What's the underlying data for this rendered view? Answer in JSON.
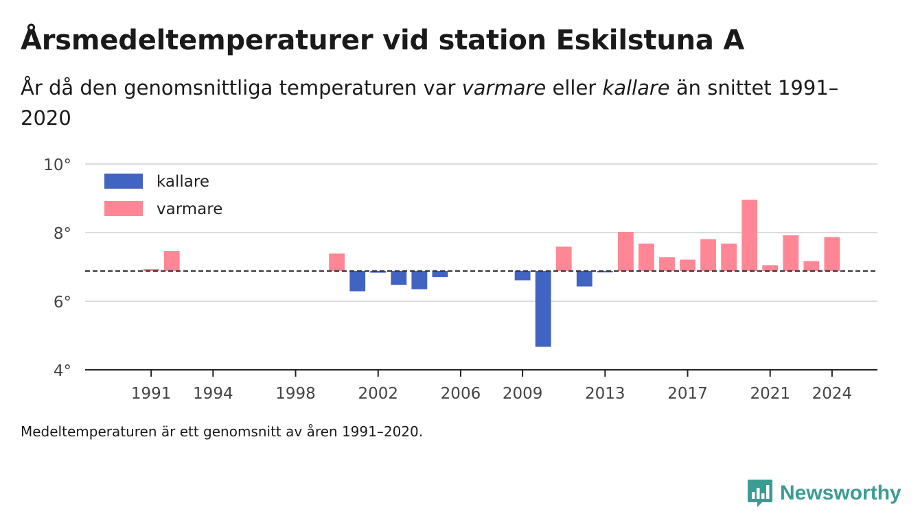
{
  "header": {
    "title": "Årsmedeltemperaturer vid station Eskilstuna A",
    "subtitle_parts": [
      "År då den genomsnittliga temperaturen var ",
      "varmare",
      " eller ",
      "kallare",
      " än snittet 1991–2020"
    ]
  },
  "footnote": "Medeltemperaturen är ett genomsnitt av åren 1991–2020.",
  "brand": {
    "name": "Newsworthy",
    "icon": "newsworthy-logo-icon",
    "color": "#3a9c92"
  },
  "colors": {
    "kallare": "#4163c1",
    "varmare": "#ff8795"
  },
  "chart_data": {
    "type": "bar",
    "ylim": [
      4,
      10
    ],
    "yticks": [
      4,
      6,
      8,
      10
    ],
    "ytick_labels": [
      "4°",
      "6°",
      "8°",
      "10°"
    ],
    "xlim": [
      1987.8,
      2026.2
    ],
    "xticks": [
      1991,
      1994,
      1998,
      2002,
      2006,
      2009,
      2013,
      2017,
      2021,
      2024
    ],
    "baseline": 6.88,
    "baseline_style": "dashed",
    "grid": true,
    "legend_position": "top-left",
    "legend": [
      {
        "label": "kallare",
        "color": "#4163c1"
      },
      {
        "label": "varmare",
        "color": "#ff8795"
      }
    ],
    "bars": [
      {
        "year": 1991,
        "value": 6.94
      },
      {
        "year": 1992,
        "value": 7.46
      },
      {
        "year": 2000,
        "value": 7.39
      },
      {
        "year": 2001,
        "value": 6.29
      },
      {
        "year": 2002,
        "value": 6.83
      },
      {
        "year": 2003,
        "value": 6.48
      },
      {
        "year": 2004,
        "value": 6.35
      },
      {
        "year": 2005,
        "value": 6.7
      },
      {
        "year": 2009,
        "value": 6.61
      },
      {
        "year": 2010,
        "value": 4.67
      },
      {
        "year": 2011,
        "value": 7.59
      },
      {
        "year": 2012,
        "value": 6.43
      },
      {
        "year": 2013,
        "value": 6.84
      },
      {
        "year": 2014,
        "value": 8.02
      },
      {
        "year": 2015,
        "value": 7.68
      },
      {
        "year": 2016,
        "value": 7.28
      },
      {
        "year": 2017,
        "value": 7.21
      },
      {
        "year": 2018,
        "value": 7.81
      },
      {
        "year": 2019,
        "value": 7.68
      },
      {
        "year": 2020,
        "value": 8.96
      },
      {
        "year": 2021,
        "value": 7.05
      },
      {
        "year": 2022,
        "value": 7.92
      },
      {
        "year": 2023,
        "value": 7.17
      },
      {
        "year": 2024,
        "value": 7.87
      }
    ]
  }
}
